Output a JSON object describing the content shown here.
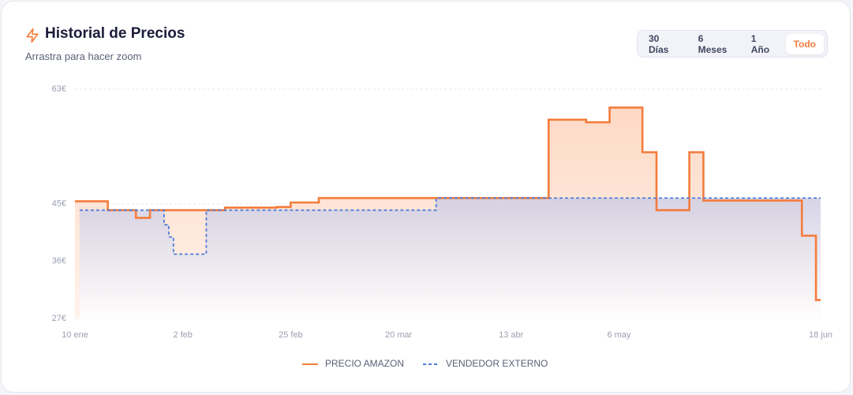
{
  "header": {
    "title": "Historial de Precios",
    "subtitle": "Arrastra para hacer zoom"
  },
  "range_buttons": [
    "30 Días",
    "6 Meses",
    "1 Año",
    "Todo"
  ],
  "active_button": 3,
  "chart_data": {
    "type": "line",
    "step": true,
    "x": [
      0,
      7,
      13,
      16,
      32,
      43,
      46,
      52,
      101,
      109,
      114,
      121,
      124,
      131,
      134,
      155,
      158,
      159
    ],
    "series": [
      {
        "name": "PRECIO AMAZON",
        "color": "#f47c3c",
        "dashed": false,
        "x": [
          0,
          7,
          13,
          16,
          32,
          43,
          46,
          52,
          101,
          109,
          114,
          121,
          124,
          131,
          134,
          155,
          158,
          159
        ],
        "values": [
          45.4,
          44,
          42.8,
          44,
          44.4,
          44.5,
          45.2,
          45.9,
          58.2,
          57.8,
          60.1,
          53.1,
          44,
          53.1,
          45.5,
          40,
          29.9,
          29.9
        ]
      },
      {
        "name": "VENDEDOR EXTERNO",
        "color": "#4f7bd9",
        "dashed": true,
        "x": [
          1,
          19,
          20,
          21,
          28,
          77,
          159
        ],
        "values": [
          44,
          41.7,
          39.8,
          37.1,
          44,
          45.9,
          45.9
        ]
      }
    ],
    "xlim": [
      0,
      159
    ],
    "xticks": [
      {
        "value": 0,
        "label": "10 ene"
      },
      {
        "value": 23,
        "label": "2 feb"
      },
      {
        "value": 46,
        "label": "25 feb"
      },
      {
        "value": 69,
        "label": "20 mar"
      },
      {
        "value": 93,
        "label": "13 abr"
      },
      {
        "value": 116,
        "label": "6 may"
      },
      {
        "value": 159,
        "label": "18 jun"
      }
    ],
    "ylim": [
      27,
      63
    ],
    "yticks": [
      {
        "value": 27,
        "label": "27€"
      },
      {
        "value": 36,
        "label": "36€"
      },
      {
        "value": 45,
        "label": "45€"
      },
      {
        "value": 63,
        "label": "63€"
      }
    ],
    "grid": true,
    "legend": "bottom"
  }
}
